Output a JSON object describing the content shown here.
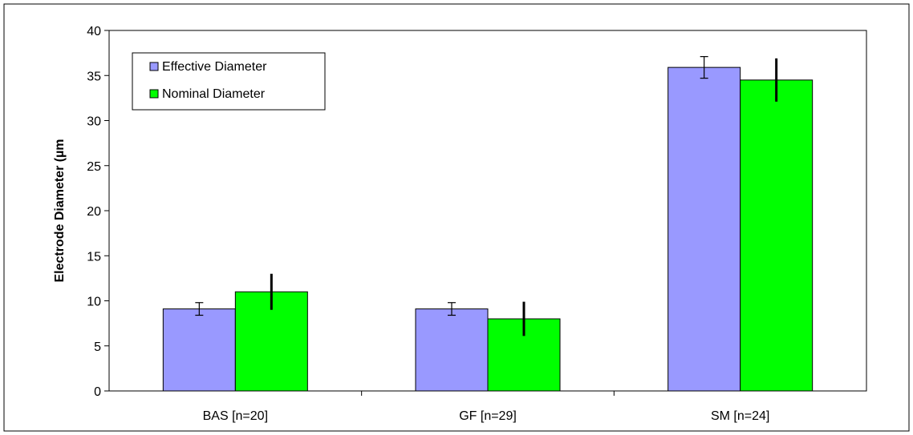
{
  "chart_data": {
    "type": "bar",
    "title": "",
    "xlabel": "",
    "ylabel": "Electrode Diameter  (µm",
    "ylim": [
      0,
      40
    ],
    "yticks": [
      0,
      5,
      10,
      15,
      20,
      25,
      30,
      35,
      40
    ],
    "categories": [
      "BAS [n=20]",
      "GF [n=29]",
      "SM [n=24]"
    ],
    "series": [
      {
        "name": "Effective Diameter",
        "color": "#9999ff",
        "values": [
          9.1,
          9.1,
          35.9
        ],
        "errors": [
          0.7,
          0.7,
          1.2
        ]
      },
      {
        "name": "Nominal Diameter",
        "color": "#00ff00",
        "values": [
          11.0,
          8.0,
          34.5
        ],
        "errors": [
          2.0,
          1.9,
          2.4
        ]
      }
    ],
    "legend": "top-left",
    "grid": false
  }
}
